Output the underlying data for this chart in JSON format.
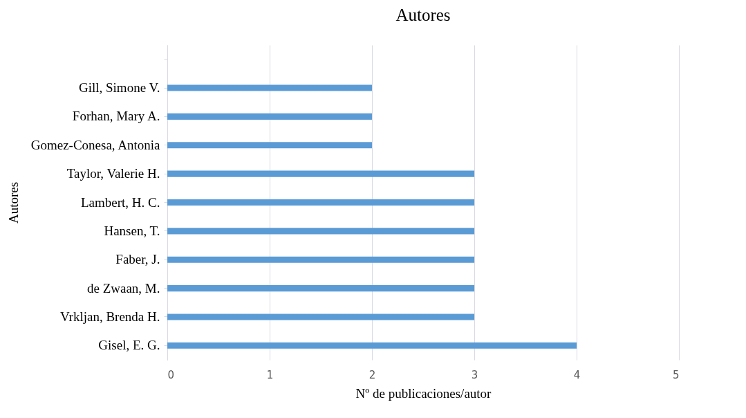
{
  "chart_data": {
    "type": "bar",
    "orientation": "horizontal",
    "title": "Autores",
    "xlabel": "Nº de publicaciones/autor",
    "ylabel": "Autores",
    "categories": [
      null,
      "Gill, Simone V.",
      "Forhan, Mary A.",
      "Gomez-Conesa, Antonia",
      "Taylor, Valerie H.",
      "Lambert, H. C.",
      "Hansen, T.",
      "Faber, J.",
      "de Zwaan, M.",
      "Vrkljan, Brenda H.",
      "Gisel, E. G."
    ],
    "values": [
      null,
      2,
      2,
      2,
      3,
      3,
      3,
      3,
      3,
      3,
      4
    ],
    "color": "#5b9bd5",
    "xlim": [
      0,
      5
    ],
    "xticks": [
      0,
      1,
      2,
      3,
      4,
      5
    ],
    "grid": "x"
  }
}
